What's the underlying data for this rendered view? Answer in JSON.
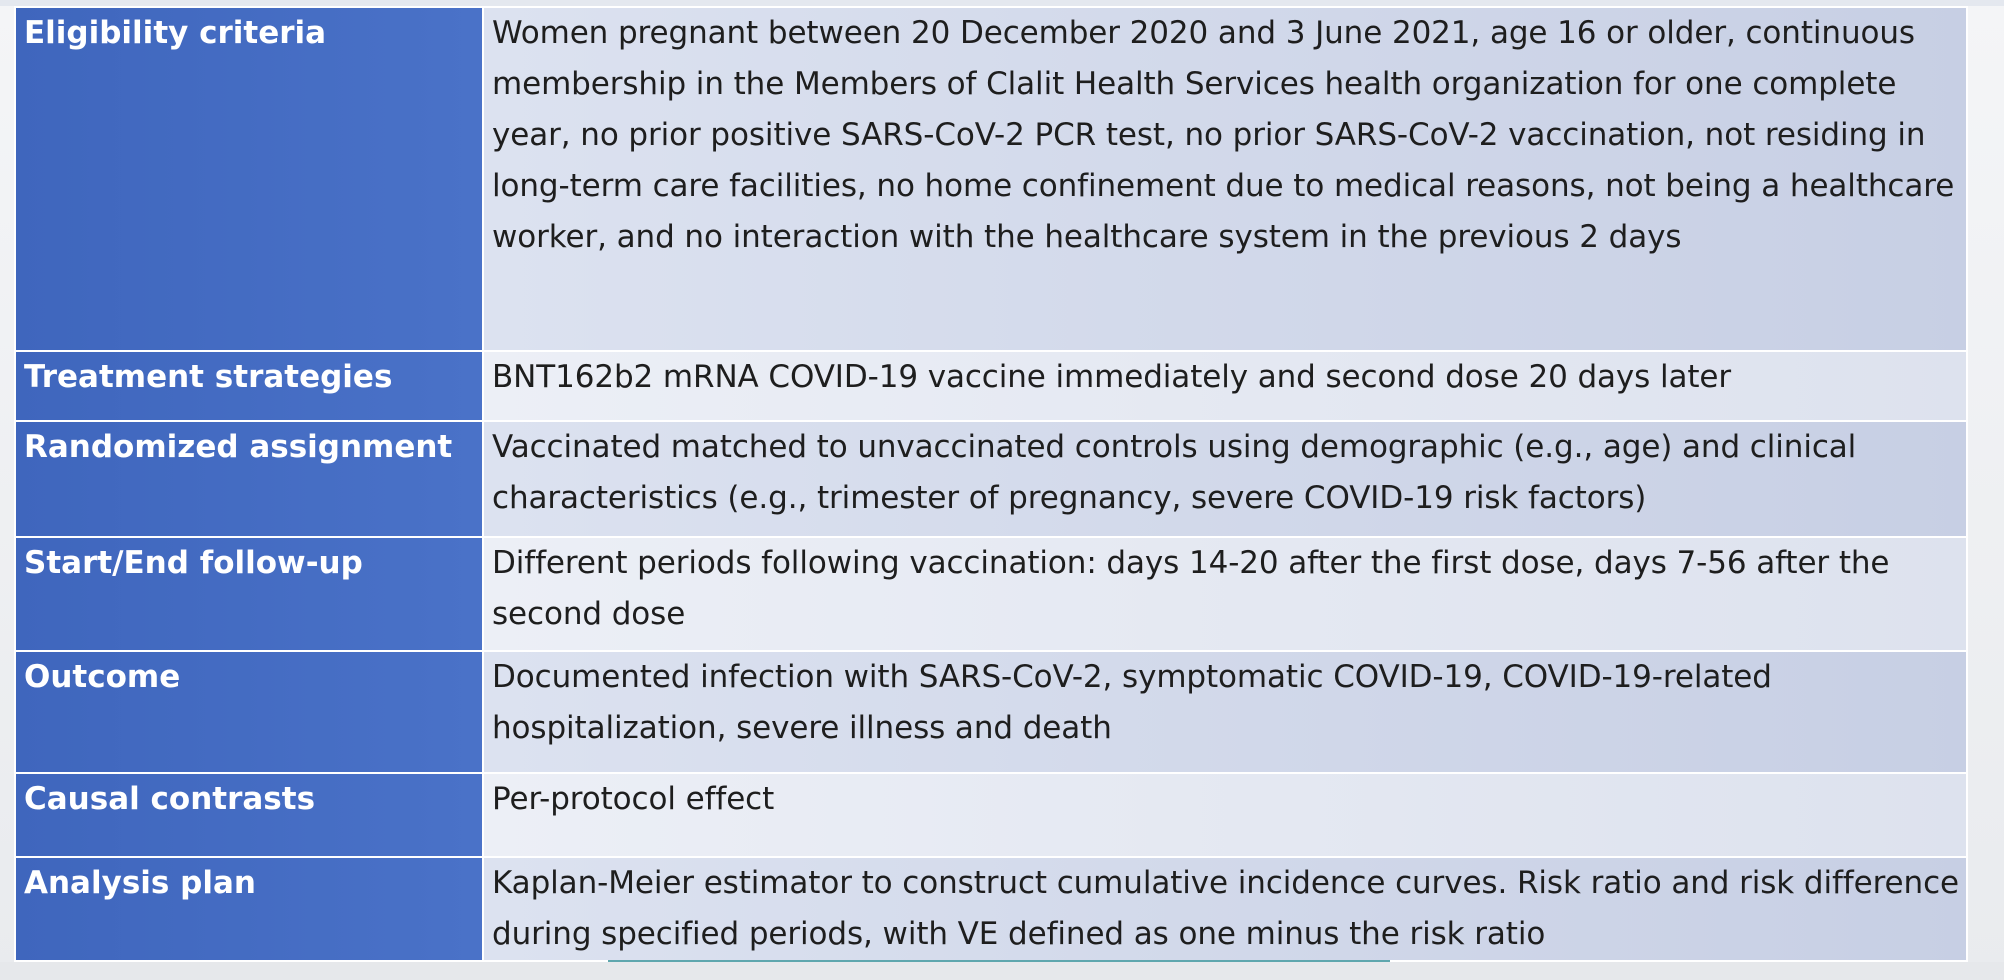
{
  "table": {
    "rows": [
      {
        "label": "Eligibility criteria",
        "value": "Women pregnant between 20 December 2020 and 3 June 2021, age 16 or older, continuous membership in the Members of Clalit Health Services health organization for one complete year, no prior positive SARS-CoV-2 PCR test, no prior SARS-CoV-2 vaccination, not residing in long-term care facilities, no home confinement due to medical reasons, not being a healthcare worker, and no interaction with the healthcare system in the previous 2 days"
      },
      {
        "label": "Treatment strategies",
        "value": "BNT162b2 mRNA COVID-19 vaccine immediately and second dose 20 days later"
      },
      {
        "label": "Randomized assignment",
        "value": "Vaccinated matched to unvaccinated controls using demographic (e.g., age) and clinical characteristics (e.g., trimester of pregnancy, severe COVID-19 risk factors)"
      },
      {
        "label": "Start/End follow-up",
        "value": "Different periods following vaccination: days 14-20 after the first dose, days 7-56 after the second dose"
      },
      {
        "label": "Outcome",
        "value": "Documented infection with SARS-CoV-2, symptomatic COVID-19, COVID-19-related hospitalization, severe illness and death"
      },
      {
        "label": "Causal contrasts",
        "value": "Per-protocol effect"
      },
      {
        "label": "Analysis plan",
        "value": "Kaplan-Meier estimator to construct cumulative incidence curves. Risk ratio and risk difference during specified periods, with VE defined as one minus the risk ratio"
      }
    ]
  },
  "colors": {
    "label_bg": "#4169be",
    "value_bg": "#d3d9ea",
    "label_text": "#ffffff",
    "value_text": "#1e1e1e"
  }
}
